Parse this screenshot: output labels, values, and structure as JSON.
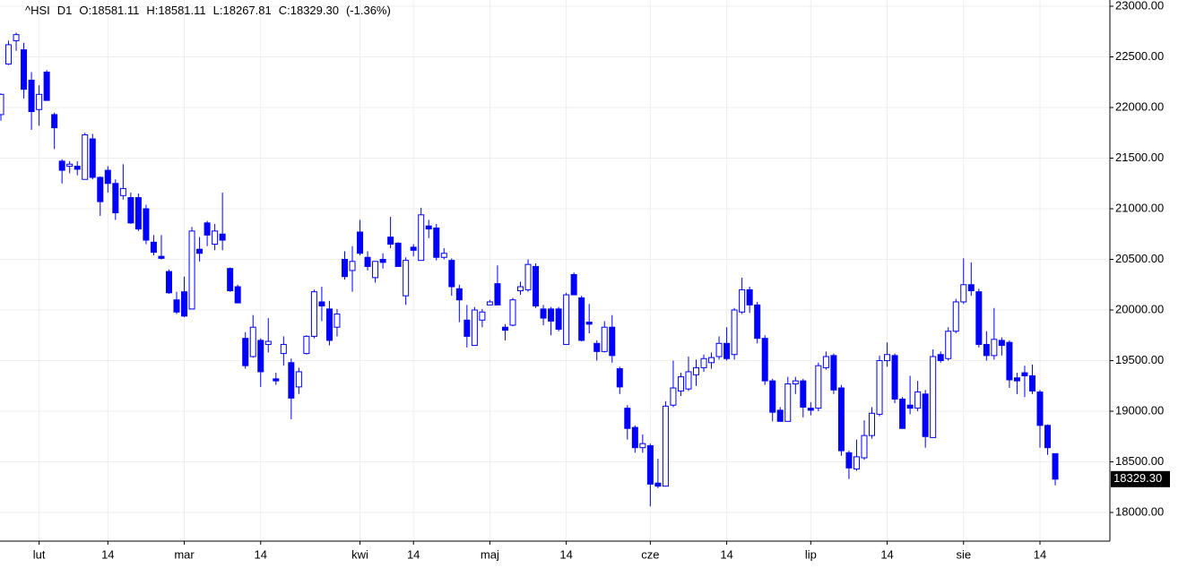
{
  "chart_data": {
    "type": "candlestick",
    "header": [
      "^HSI",
      "D1",
      "O:18581.11",
      "H:18581.11",
      "L:18267.81",
      "C:18329.30",
      "(-1.36%)"
    ],
    "up_color": "#0000ff",
    "down_color": "#0000ff",
    "grid": true,
    "ylim": [
      17717,
      23062
    ],
    "yticks": [
      {
        "value": 18000,
        "label": "18000.00"
      },
      {
        "value": 18500,
        "label": "18500.00"
      },
      {
        "value": 19000,
        "label": "19000.00"
      },
      {
        "value": 19500,
        "label": "19500.00"
      },
      {
        "value": 20000,
        "label": "20000.00"
      },
      {
        "value": 20500,
        "label": "20500.00"
      },
      {
        "value": 21000,
        "label": "21000.00"
      },
      {
        "value": 21500,
        "label": "21500.00"
      },
      {
        "value": 22000,
        "label": "22000.00"
      },
      {
        "value": 22500,
        "label": "22500.00"
      },
      {
        "value": 23000,
        "label": "23000.00"
      }
    ],
    "last_price": {
      "value": 18329.3,
      "label": "18329.30"
    },
    "categories": [
      null,
      null,
      null,
      null,
      null,
      "lut",
      null,
      null,
      null,
      null,
      null,
      null,
      null,
      null,
      "14",
      null,
      null,
      null,
      null,
      null,
      null,
      null,
      null,
      null,
      "mar",
      null,
      null,
      null,
      null,
      null,
      null,
      null,
      null,
      null,
      "14",
      null,
      null,
      null,
      null,
      null,
      null,
      null,
      null,
      null,
      null,
      null,
      null,
      "kwi",
      null,
      null,
      null,
      null,
      null,
      null,
      "14",
      null,
      null,
      null,
      null,
      null,
      null,
      null,
      null,
      null,
      "maj",
      null,
      null,
      null,
      null,
      null,
      null,
      null,
      null,
      null,
      "14",
      null,
      null,
      null,
      null,
      null,
      null,
      null,
      null,
      null,
      null,
      "cze",
      null,
      null,
      null,
      null,
      null,
      null,
      null,
      null,
      null,
      "14",
      null,
      null,
      null,
      null,
      null,
      null,
      null,
      null,
      null,
      null,
      "lip",
      null,
      null,
      null,
      null,
      null,
      null,
      null,
      null,
      null,
      "14",
      null,
      null,
      null,
      null,
      null,
      null,
      null,
      null,
      null,
      "sie",
      null,
      null,
      null,
      null,
      null,
      null,
      null,
      null,
      null,
      "14",
      null,
      null
    ],
    "open": [
      21930,
      22430,
      22660,
      22570,
      22270,
      21980,
      22350,
      21930,
      21470,
      21420,
      21420,
      21290,
      21690,
      21310,
      21380,
      21250,
      21130,
      21110,
      21110,
      21000,
      20670,
      20530,
      20380,
      20100,
      20180,
      20010,
      20600,
      20860,
      20650,
      20750,
      20410,
      20230,
      19720,
      19540,
      19700,
      19660,
      19320,
      19570,
      19480,
      19240,
      19570,
      19740,
      20080,
      20010,
      19830,
      20500,
      20390,
      20770,
      20520,
      20320,
      20500,
      20720,
      20660,
      20140,
      20620,
      20490,
      20830,
      20810,
      20520,
      20490,
      20210,
      19900,
      19650,
      19900,
      20050,
      20260,
      19830,
      19850,
      20190,
      20200,
      20430,
      20010,
      20010,
      20010,
      19660,
      20350,
      20120,
      19880,
      19670,
      19590,
      19830,
      19420,
      19030,
      18840,
      18640,
      18660,
      18290,
      18260,
      19060,
      19200,
      19220,
      19360,
      19430,
      19480,
      19540,
      19670,
      19560,
      19980,
      20200,
      20050,
      19720,
      19300,
      19010,
      18900,
      19270,
      19300,
      19030,
      19030,
      19430,
      19550,
      19230,
      18590,
      18430,
      18540,
      18760,
      18970,
      19500,
      19550,
      19120,
      19060,
      19030,
      19170,
      18740,
      19560,
      19520,
      19790,
      20080,
      20250,
      20180,
      19660,
      19550,
      19700,
      19680,
      19330,
      19380,
      19350,
      19190,
      18860,
      18581.11
    ],
    "high": [
      22140,
      22660,
      22740,
      22640,
      22350,
      22220,
      22370,
      21950,
      21490,
      21470,
      21470,
      21750,
      21740,
      21320,
      21420,
      21290,
      21440,
      21160,
      21150,
      21040,
      20740,
      20740,
      20400,
      20180,
      20330,
      20820,
      20720,
      20880,
      20850,
      21160,
      20420,
      20250,
      19780,
      19950,
      19720,
      19920,
      19380,
      19740,
      19520,
      19430,
      19750,
      20200,
      20230,
      20090,
      20010,
      20580,
      20630,
      20890,
      20580,
      20480,
      20560,
      20920,
      20670,
      20520,
      20650,
      21010,
      20890,
      20850,
      20610,
      20510,
      20250,
      20050,
      20030,
      20010,
      20100,
      20440,
      19860,
      20120,
      20280,
      20500,
      20460,
      20050,
      20030,
      20030,
      20170,
      20370,
      20140,
      20060,
      19700,
      19890,
      19950,
      19440,
      19060,
      18860,
      18770,
      18680,
      18530,
      19100,
      19500,
      19380,
      19540,
      19510,
      19560,
      19580,
      19740,
      19830,
      20020,
      20320,
      20230,
      20080,
      19750,
      19320,
      19040,
      19340,
      19340,
      19320,
      19090,
      19480,
      19590,
      19570,
      19260,
      18610,
      18720,
      18910,
      19040,
      19550,
      19680,
      19570,
      19140,
      19350,
      19300,
      19210,
      19610,
      19590,
      19830,
      20110,
      20510,
      20470,
      20210,
      19790,
      20020,
      19730,
      19700,
      19380,
      19450,
      19460,
      19210,
      18870,
      18581.11
    ],
    "low": [
      21870,
      22420,
      22560,
      22090,
      21780,
      21820,
      22070,
      21590,
      21250,
      21350,
      21330,
      21290,
      21290,
      20930,
      21160,
      20890,
      21090,
      20850,
      20780,
      20650,
      20540,
      20500,
      20160,
      19960,
      19930,
      20010,
      20480,
      20630,
      20590,
      20590,
      20180,
      20070,
      19420,
      19530,
      19240,
      19580,
      19260,
      19450,
      18920,
      19170,
      19560,
      19720,
      19890,
      19650,
      19740,
      20300,
      20180,
      20540,
      20390,
      20270,
      20410,
      20610,
      20430,
      20050,
      20530,
      20490,
      20710,
      20490,
      20500,
      20140,
      19880,
      19630,
      19650,
      19830,
      20050,
      20050,
      19700,
      19840,
      20150,
      20180,
      20020,
      19850,
      19750,
      19790,
      19660,
      20150,
      19690,
      19770,
      19500,
      19580,
      19480,
      19170,
      18720,
      18590,
      18590,
      18060,
      18240,
      18260,
      19040,
      19150,
      19200,
      19250,
      19390,
      19420,
      19510,
      19500,
      19510,
      19960,
      19970,
      19670,
      19260,
      18900,
      18900,
      18900,
      19170,
      18940,
      18960,
      19000,
      19410,
      19170,
      18560,
      18330,
      18410,
      18520,
      18730,
      18950,
      19440,
      19080,
      18830,
      18970,
      19000,
      18640,
      18740,
      19480,
      19500,
      19770,
      20060,
      20140,
      19630,
      19500,
      19510,
      19550,
      19230,
      19170,
      19140,
      19170,
      18640,
      18570,
      18267.81
    ],
    "close": [
      22130,
      22620,
      22720,
      22180,
      21960,
      22130,
      22070,
      21800,
      21380,
      21440,
      21390,
      21730,
      21310,
      21070,
      21250,
      20960,
      21200,
      20860,
      20800,
      20690,
      20570,
      20510,
      20170,
      19980,
      19940,
      20780,
      20560,
      20740,
      20780,
      20690,
      20190,
      20070,
      19450,
      19830,
      19390,
      19690,
      19300,
      19660,
      19130,
      19390,
      19740,
      20180,
      20040,
      19700,
      19960,
      20330,
      20480,
      20560,
      20430,
      20480,
      20470,
      20650,
      20430,
      20490,
      20590,
      20940,
      20800,
      20520,
      20560,
      20230,
      20100,
      19740,
      20000,
      19980,
      20080,
      20050,
      19800,
      20100,
      20230,
      20450,
      20040,
      19920,
      19890,
      19810,
      20150,
      20150,
      19700,
      19860,
      19590,
      19830,
      19550,
      19240,
      18830,
      18640,
      18680,
      18280,
      18260,
      19050,
      19230,
      19340,
      19390,
      19430,
      19520,
      19530,
      19670,
      19520,
      20000,
      20200,
      20050,
      19720,
      19300,
      18990,
      18900,
      19270,
      19300,
      19040,
      19010,
      19450,
      19540,
      19210,
      18610,
      18440,
      18550,
      18760,
      18980,
      19500,
      19560,
      19120,
      18830,
      19030,
      19190,
      18750,
      19540,
      19500,
      19790,
      20080,
      20250,
      20190,
      19660,
      19550,
      19710,
      19650,
      19310,
      19300,
      19350,
      19200,
      18860,
      18640,
      18329.3
    ]
  }
}
